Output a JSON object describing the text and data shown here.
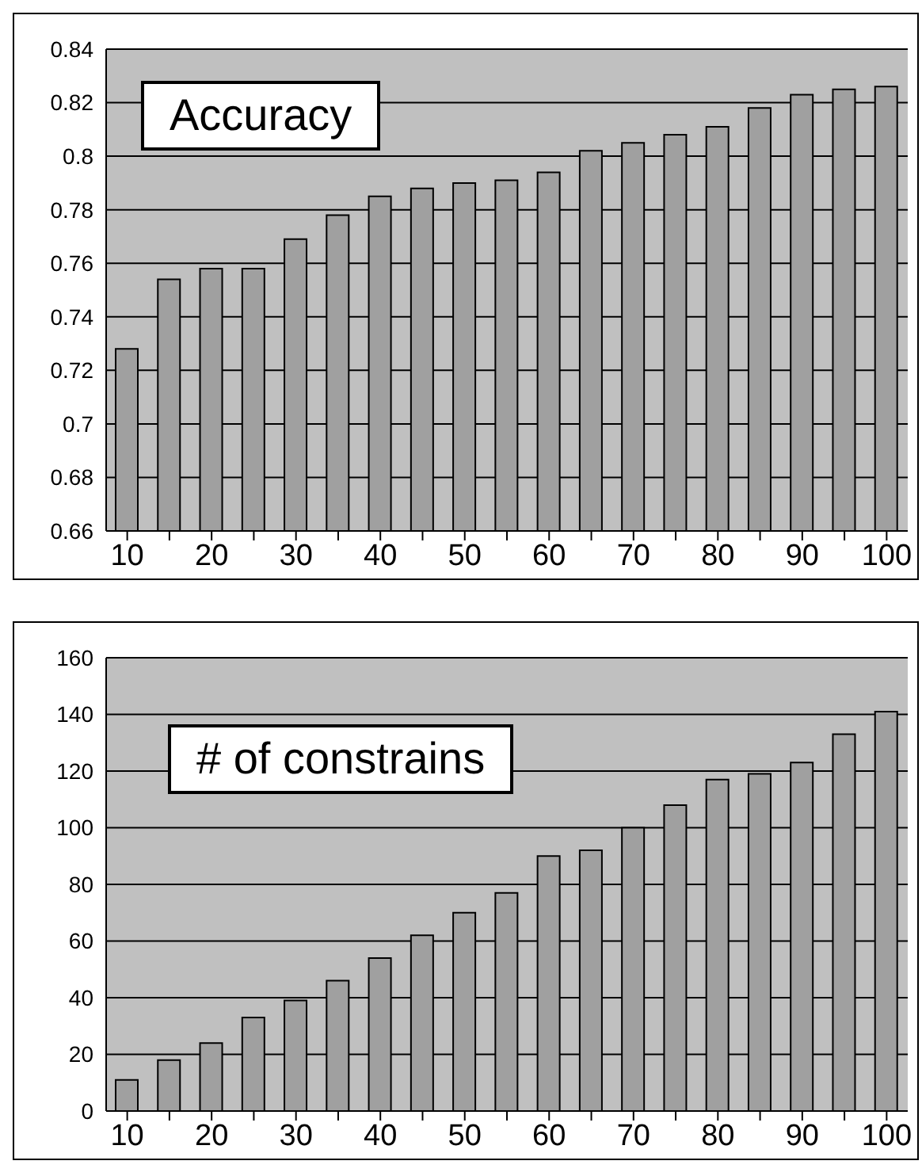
{
  "chart_data": [
    {
      "type": "bar",
      "title": "Accuracy",
      "categories": [
        "10",
        null,
        "20",
        null,
        "30",
        null,
        "40",
        null,
        "50",
        null,
        "60",
        null,
        "70",
        null,
        "80",
        null,
        "90",
        null,
        "100"
      ],
      "values": [
        0.728,
        0.754,
        0.758,
        0.758,
        0.769,
        0.778,
        0.785,
        0.788,
        0.79,
        0.791,
        0.794,
        0.802,
        0.805,
        0.808,
        0.811,
        0.818,
        0.823,
        0.825,
        0.826
      ],
      "color": "#a0a0a0",
      "ylim": [
        0.66,
        0.84
      ],
      "yticks": [
        0.66,
        0.68,
        0.7,
        0.72,
        0.74,
        0.76,
        0.78,
        0.8,
        0.82,
        0.84
      ],
      "grid": "y",
      "legend": false
    },
    {
      "type": "bar",
      "title": "# of constrains",
      "categories": [
        "10",
        null,
        "20",
        null,
        "30",
        null,
        "40",
        null,
        "50",
        null,
        "60",
        null,
        "70",
        null,
        "80",
        null,
        "90",
        null,
        "100"
      ],
      "values": [
        11,
        18,
        24,
        33,
        39,
        46,
        54,
        62,
        70,
        77,
        90,
        92,
        100,
        108,
        117,
        119,
        123,
        133,
        141
      ],
      "color": "#a0a0a0",
      "ylim": [
        0,
        160
      ],
      "yticks": [
        0,
        20,
        40,
        60,
        80,
        100,
        120,
        140,
        160
      ],
      "grid": "y",
      "legend": false
    }
  ]
}
